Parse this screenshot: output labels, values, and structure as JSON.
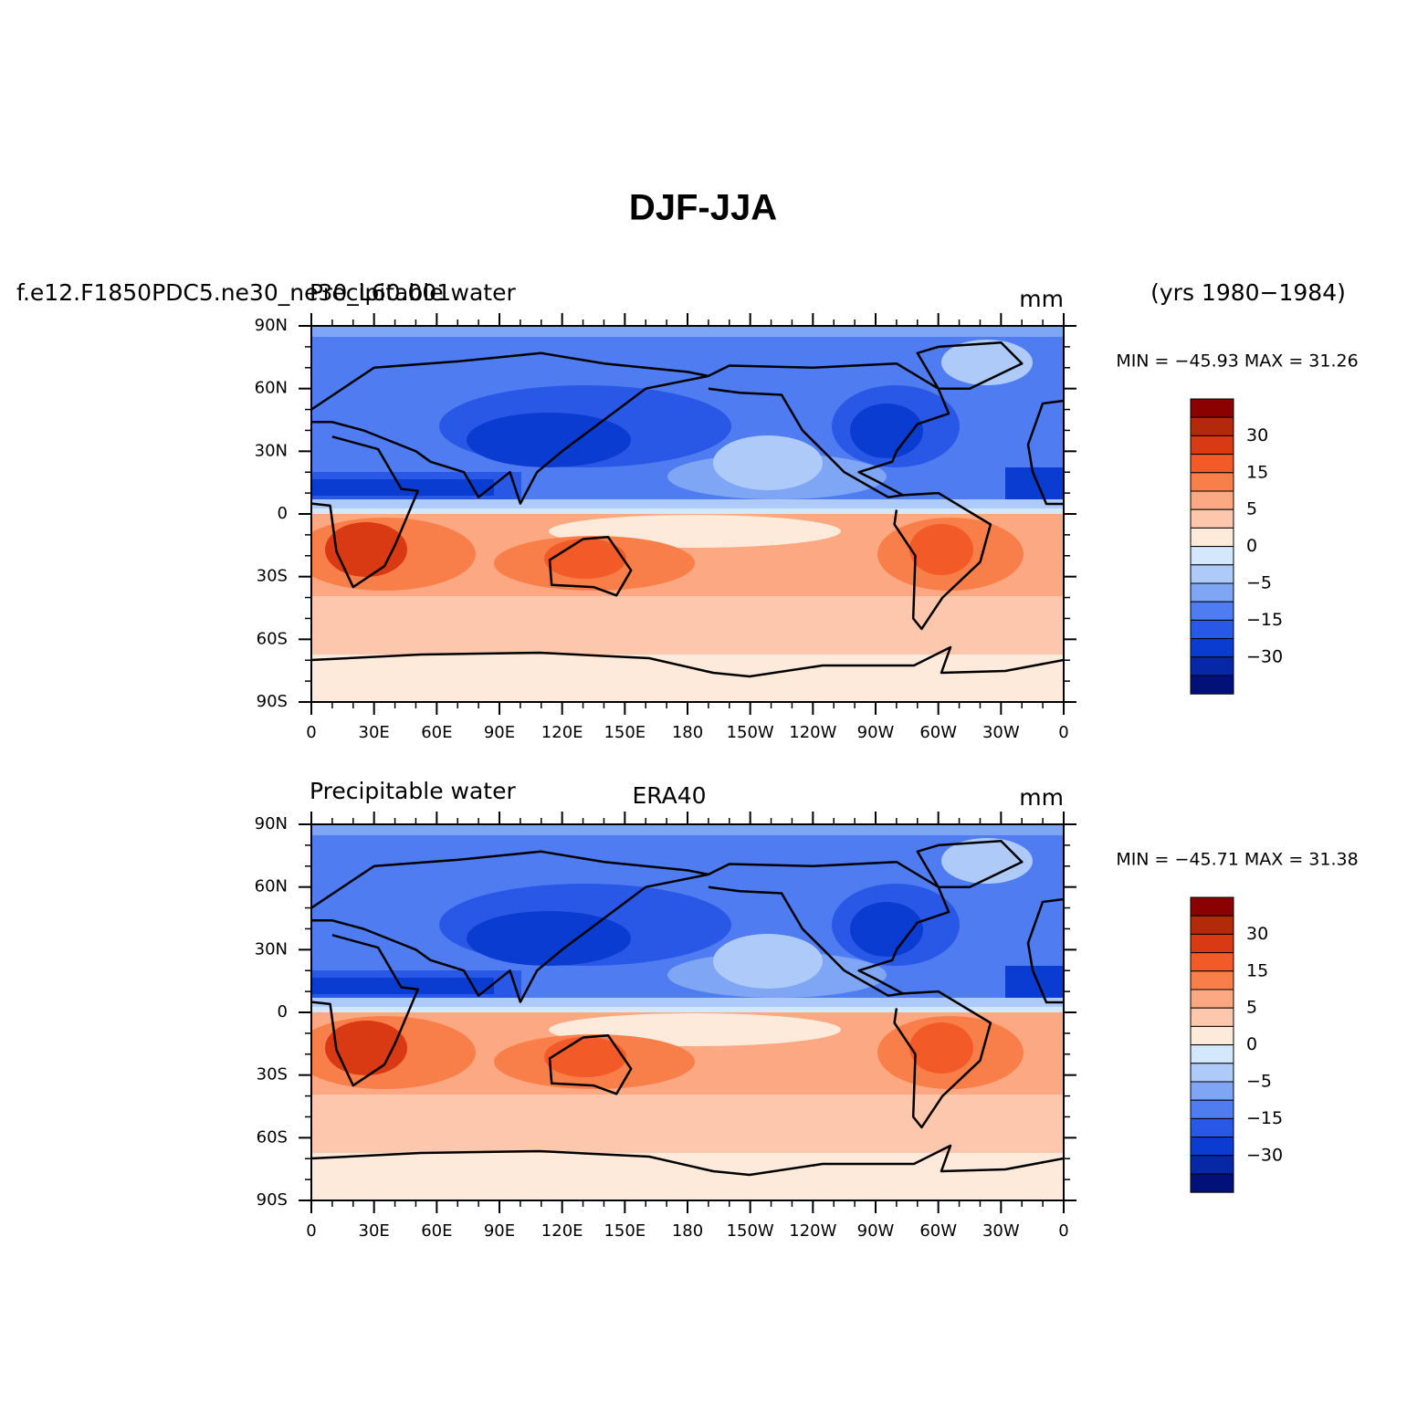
{
  "title": "DJF-JJA",
  "years": "(yrs 1980−1984)",
  "panels": [
    {
      "left_title": "Precipitable water",
      "case_name": "f.e12.F1850PDC5.ne30_ne30_L60.001",
      "units": "mm",
      "min_max": "MIN = −45.93 MAX =  31.26"
    },
    {
      "left_title": "Precipitable water",
      "center_title": "ERA40",
      "units": "mm",
      "min_max": "MIN = −45.71 MAX =  31.38"
    }
  ],
  "x_tick_labels": [
    "0",
    "30E",
    "60E",
    "90E",
    "120E",
    "150E",
    "180",
    "150W",
    "120W",
    "90W",
    "60W",
    "30W",
    "0"
  ],
  "y_tick_labels": [
    "90N",
    "60N",
    "30N",
    "0",
    "30S",
    "60S",
    "90S"
  ],
  "colorbar": {
    "labels": [
      "30",
      "15",
      "5",
      "0",
      "−5",
      "−15",
      "−30"
    ],
    "colors": [
      "#8b0000",
      "#b22a0a",
      "#d93a14",
      "#f25a28",
      "#f97f4a",
      "#fca882",
      "#fdc7ad",
      "#feeadb",
      "#d4e8fd",
      "#aecaf9",
      "#7fa6f4",
      "#4f7cf0",
      "#2958e6",
      "#0a3cd2",
      "#0628a6",
      "#02107a"
    ]
  }
}
